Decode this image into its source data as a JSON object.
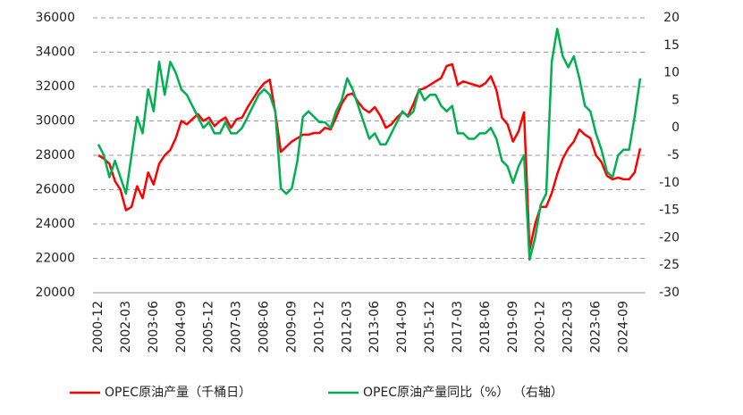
{
  "chart_data": {
    "type": "line",
    "categories": [
      "2000-12",
      null,
      null,
      null,
      null,
      "2002-03",
      null,
      null,
      null,
      null,
      "2003-06",
      null,
      null,
      null,
      null,
      "2004-09",
      null,
      null,
      null,
      null,
      "2005-12",
      null,
      null,
      null,
      null,
      "2007-03",
      null,
      null,
      null,
      null,
      "2008-06",
      null,
      null,
      null,
      null,
      "2009-09",
      null,
      null,
      null,
      null,
      "2010-12",
      null,
      null,
      null,
      null,
      "2012-03",
      null,
      null,
      null,
      null,
      "2013-06",
      null,
      null,
      null,
      null,
      "2014-09",
      null,
      null,
      null,
      null,
      "2015-12",
      null,
      null,
      null,
      null,
      "2017-03",
      null,
      null,
      null,
      null,
      "2018-06",
      null,
      null,
      null,
      null,
      "2019-09",
      null,
      null,
      null,
      null,
      "2020-12",
      null,
      null,
      null,
      null,
      "2022-03",
      null,
      null,
      null,
      null,
      "2023-06",
      null,
      null,
      null,
      null,
      "2024-09",
      null,
      null,
      null
    ],
    "series": [
      {
        "name": "OPEC原油产量（千桶日）",
        "color": "#ff0000",
        "values": [
          28000,
          27800,
          27500,
          26500,
          26000,
          24800,
          25000,
          26200,
          25500,
          27000,
          26300,
          27500,
          28000,
          28300,
          29000,
          30000,
          29800,
          30100,
          30400,
          30000,
          30200,
          29700,
          30000,
          30200,
          29600,
          30100,
          30200,
          30800,
          31300,
          31800,
          32200,
          32400,
          30500,
          28200,
          28500,
          28800,
          29000,
          29200,
          29200,
          29300,
          29300,
          29600,
          29500,
          30200,
          31000,
          31500,
          31600,
          31100,
          30700,
          30500,
          30800,
          30300,
          29600,
          29800,
          30200,
          30500,
          30300,
          31000,
          31800,
          31900,
          32100,
          32300,
          32500,
          33200,
          33300,
          32100,
          32300,
          32200,
          32100,
          32000,
          32200,
          32600,
          31800,
          30200,
          29800,
          28800,
          29400,
          30500,
          22500,
          24000,
          25000,
          25000,
          25800,
          26900,
          27800,
          28400,
          28800,
          29500,
          29200,
          29000,
          28000,
          27600,
          26800,
          26600,
          26700,
          26600,
          26600,
          27000,
          28400
        ]
      },
      {
        "name": "OPEC原油产量同比（%）  （右轴）",
        "color": "#00b050",
        "axis": "y2",
        "values": [
          -3,
          -5,
          -9,
          -6,
          -9,
          -12,
          -5,
          2,
          -1,
          7,
          3,
          12,
          6,
          12,
          10,
          7,
          6,
          4,
          2,
          0,
          1,
          -1,
          -1,
          1,
          -1,
          -1,
          0,
          2,
          4,
          6,
          7,
          6,
          3,
          -11,
          -12,
          -11,
          -6,
          2,
          3,
          2,
          1,
          1,
          0,
          3,
          5,
          9,
          7,
          4,
          1,
          -2,
          -1,
          -3,
          -3,
          -1,
          1,
          3,
          2,
          3,
          7,
          5,
          6,
          6,
          4,
          3,
          4,
          -1,
          -1,
          -2,
          -2,
          -1,
          -1,
          0,
          -2,
          -6,
          -7,
          -10,
          -7,
          -5,
          -24,
          -20,
          -14,
          -12,
          12,
          18,
          13,
          11,
          13,
          9,
          4,
          3,
          -1,
          -4,
          -8,
          -9,
          -5,
          -4,
          -4,
          2,
          9
        ]
      }
    ],
    "ylim": [
      20000,
      36000
    ],
    "yticks": [
      20000,
      22000,
      24000,
      26000,
      28000,
      30000,
      32000,
      34000,
      36000
    ],
    "y2lim": [
      -30,
      20
    ],
    "y2ticks": [
      -30,
      -25,
      -20,
      -15,
      -10,
      -5,
      0,
      5,
      10,
      15,
      20
    ],
    "grid": true
  }
}
